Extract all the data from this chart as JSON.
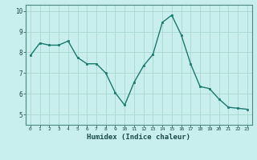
{
  "x": [
    0,
    1,
    2,
    3,
    4,
    5,
    6,
    7,
    8,
    9,
    10,
    11,
    12,
    13,
    14,
    15,
    16,
    17,
    18,
    19,
    20,
    21,
    22,
    23
  ],
  "y": [
    7.85,
    8.45,
    8.35,
    8.35,
    8.55,
    7.75,
    7.45,
    7.45,
    7.0,
    6.05,
    5.45,
    6.55,
    7.35,
    7.9,
    9.45,
    9.8,
    8.85,
    7.45,
    6.35,
    6.25,
    5.75,
    5.35,
    5.3,
    5.25
  ],
  "xlabel": "Humidex (Indice chaleur)",
  "ylim": [
    4.5,
    10.3
  ],
  "xlim": [
    -0.5,
    23.5
  ],
  "line_color": "#1a7a6e",
  "marker_color": "#1a7a6e",
  "bg_color": "#c8eeee",
  "grid_color": "#a8d8d0",
  "yticks": [
    5,
    6,
    7,
    8,
    9,
    10
  ],
  "xticks": [
    0,
    1,
    2,
    3,
    4,
    5,
    6,
    7,
    8,
    9,
    10,
    11,
    12,
    13,
    14,
    15,
    16,
    17,
    18,
    19,
    20,
    21,
    22,
    23
  ]
}
